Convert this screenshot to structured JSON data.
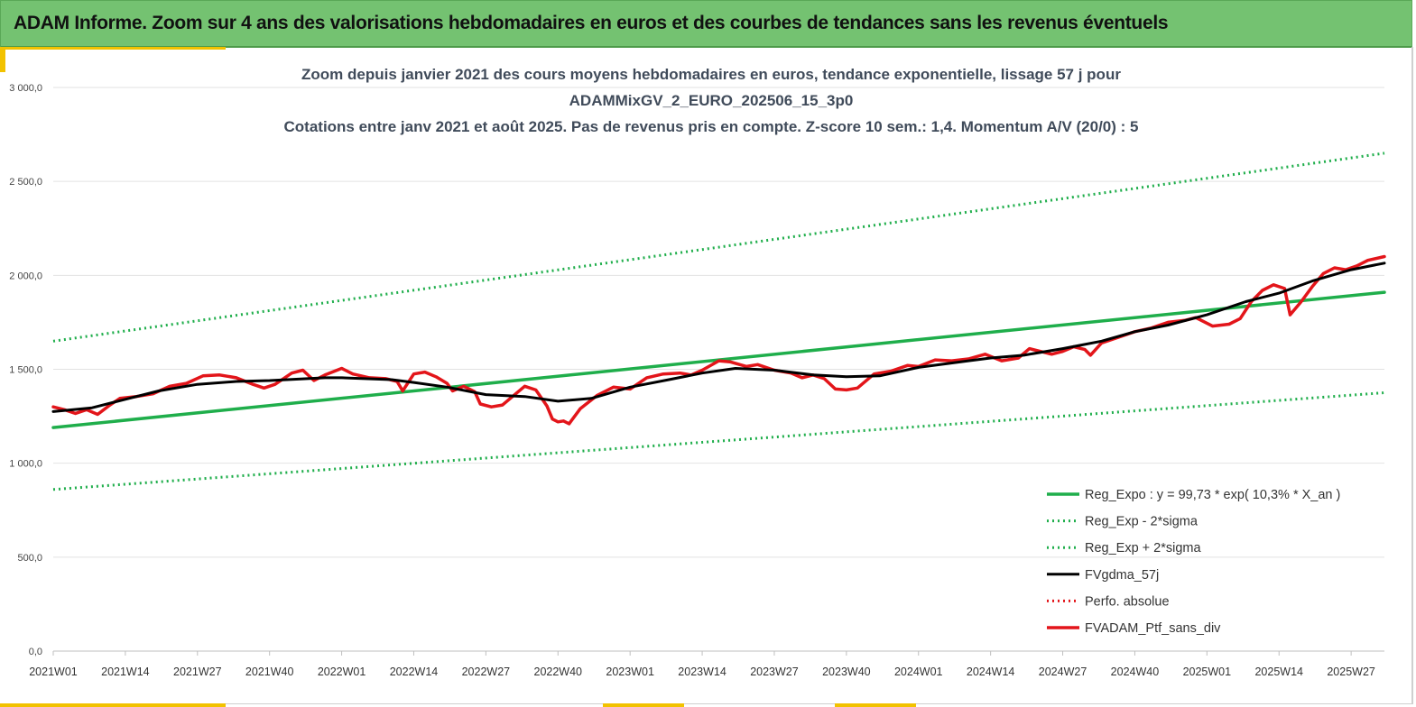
{
  "header": {
    "title": "ADAM Informe. Zoom sur 4 ans des valorisations hebdomadaires en euros et des courbes de tendances sans les revenus éventuels"
  },
  "colors": {
    "header_bg": "#74c271",
    "accent": "#f2c200",
    "reg_expo": "#1fae4b",
    "band": "#1fae4b",
    "mma": "#000000",
    "series": "#e3151a"
  },
  "chart_data": {
    "type": "line",
    "title_lines": [
      "Zoom depuis janvier 2021 des cours moyens hebdomadaires  en euros, tendance exponentielle, lissage 57 j pour",
      "ADAMMixGV_2_EURO_202506_15_3p0",
      "Cotations  entre janv 2021 et août 2025. Pas de revenus pris en compte. Z-score 10 sem.: 1,4. Momentum A/V (20/0) : 5"
    ],
    "ylim": [
      0,
      3000
    ],
    "y_ticks": [
      {
        "value": 0,
        "label": "0,0"
      },
      {
        "value": 500,
        "label": "500,0"
      },
      {
        "value": 1000,
        "label": "1 000,0"
      },
      {
        "value": 1500,
        "label": "1 500,0"
      },
      {
        "value": 2000,
        "label": "2 000,0"
      },
      {
        "value": 2500,
        "label": "2 500,0"
      },
      {
        "value": 3000,
        "label": "3 000,0"
      }
    ],
    "x_ticks": [
      "2021W01",
      "2021W14",
      "2021W27",
      "2021W40",
      "2022W01",
      "2022W14",
      "2022W27",
      "2022W40",
      "2023W01",
      "2023W14",
      "2023W27",
      "2023W40",
      "2024W01",
      "2024W14",
      "2024W27",
      "2024W40",
      "2025W01",
      "2025W14",
      "2025W27"
    ],
    "grid": true,
    "legend_position": "bottom-right",
    "series": [
      {
        "name": "Reg_Expo : y = 99,73 * exp( 10,3% *  X_an )",
        "style": "solid-green",
        "points": [
          [
            "2021W01",
            1190
          ],
          [
            "2025W33",
            1910
          ]
        ]
      },
      {
        "name": "Reg_Exp - 2*sigma",
        "style": "dotted-green",
        "points": [
          [
            "2021W01",
            860
          ],
          [
            "2025W33",
            1375
          ]
        ]
      },
      {
        "name": "Reg_Exp + 2*sigma",
        "style": "dotted-green",
        "points": [
          [
            "2021W01",
            1650
          ],
          [
            "2025W33",
            2650
          ]
        ]
      },
      {
        "name": "FVgdma_57j",
        "style": "solid-black",
        "points": [
          [
            "2021W01",
            1275
          ],
          [
            "2021W08",
            1295
          ],
          [
            "2021W14",
            1340
          ],
          [
            "2021W20",
            1385
          ],
          [
            "2021W27",
            1420
          ],
          [
            "2021W34",
            1435
          ],
          [
            "2021W40",
            1440
          ],
          [
            "2021W50",
            1455
          ],
          [
            "2022W01",
            1455
          ],
          [
            "2022W10",
            1445
          ],
          [
            "2022W14",
            1430
          ],
          [
            "2022W20",
            1405
          ],
          [
            "2022W27",
            1365
          ],
          [
            "2022W34",
            1355
          ],
          [
            "2022W40",
            1330
          ],
          [
            "2022W46",
            1345
          ],
          [
            "2023W01",
            1405
          ],
          [
            "2023W08",
            1445
          ],
          [
            "2023W14",
            1480
          ],
          [
            "2023W20",
            1505
          ],
          [
            "2023W27",
            1495
          ],
          [
            "2023W34",
            1470
          ],
          [
            "2023W40",
            1460
          ],
          [
            "2023W46",
            1465
          ],
          [
            "2024W01",
            1510
          ],
          [
            "2024W10",
            1545
          ],
          [
            "2024W14",
            1560
          ],
          [
            "2024W20",
            1575
          ],
          [
            "2024W27",
            1610
          ],
          [
            "2024W34",
            1650
          ],
          [
            "2024W40",
            1700
          ],
          [
            "2024W46",
            1735
          ],
          [
            "2025W01",
            1790
          ],
          [
            "2025W08",
            1860
          ],
          [
            "2025W14",
            1905
          ],
          [
            "2025W20",
            1970
          ],
          [
            "2025W27",
            2030
          ],
          [
            "2025W33",
            2065
          ]
        ]
      },
      {
        "name": "Perfo. absolue",
        "style": "dotted-red",
        "points": []
      },
      {
        "name": "FVADAM_Ptf_sans_div",
        "style": "solid-red",
        "points": [
          [
            "2021W01",
            1300
          ],
          [
            "2021W03",
            1285
          ],
          [
            "2021W05",
            1265
          ],
          [
            "2021W07",
            1285
          ],
          [
            "2021W09",
            1260
          ],
          [
            "2021W11",
            1305
          ],
          [
            "2021W13",
            1345
          ],
          [
            "2021W16",
            1355
          ],
          [
            "2021W19",
            1370
          ],
          [
            "2021W22",
            1410
          ],
          [
            "2021W25",
            1425
          ],
          [
            "2021W28",
            1465
          ],
          [
            "2021W31",
            1470
          ],
          [
            "2021W34",
            1455
          ],
          [
            "2021W37",
            1420
          ],
          [
            "2021W39",
            1400
          ],
          [
            "2021W41",
            1420
          ],
          [
            "2021W44",
            1480
          ],
          [
            "2021W46",
            1495
          ],
          [
            "2021W48",
            1440
          ],
          [
            "2021W50",
            1470
          ],
          [
            "2022W01",
            1505
          ],
          [
            "2022W03",
            1475
          ],
          [
            "2022W06",
            1455
          ],
          [
            "2022W09",
            1450
          ],
          [
            "2022W11",
            1435
          ],
          [
            "2022W12",
            1385
          ],
          [
            "2022W14",
            1475
          ],
          [
            "2022W16",
            1485
          ],
          [
            "2022W18",
            1460
          ],
          [
            "2022W20",
            1425
          ],
          [
            "2022W21",
            1385
          ],
          [
            "2022W23",
            1410
          ],
          [
            "2022W25",
            1380
          ],
          [
            "2022W26",
            1315
          ],
          [
            "2022W28",
            1300
          ],
          [
            "2022W30",
            1310
          ],
          [
            "2022W32",
            1360
          ],
          [
            "2022W34",
            1410
          ],
          [
            "2022W36",
            1390
          ],
          [
            "2022W38",
            1305
          ],
          [
            "2022W39",
            1235
          ],
          [
            "2022W40",
            1220
          ],
          [
            "2022W41",
            1225
          ],
          [
            "2022W42",
            1210
          ],
          [
            "2022W44",
            1290
          ],
          [
            "2022W47",
            1360
          ],
          [
            "2022W50",
            1405
          ],
          [
            "2023W01",
            1395
          ],
          [
            "2023W04",
            1455
          ],
          [
            "2023W07",
            1475
          ],
          [
            "2023W10",
            1480
          ],
          [
            "2023W12",
            1470
          ],
          [
            "2023W14",
            1495
          ],
          [
            "2023W17",
            1545
          ],
          [
            "2023W19",
            1540
          ],
          [
            "2023W22",
            1515
          ],
          [
            "2023W24",
            1525
          ],
          [
            "2023W27",
            1495
          ],
          [
            "2023W30",
            1480
          ],
          [
            "2023W32",
            1455
          ],
          [
            "2023W34",
            1470
          ],
          [
            "2023W36",
            1450
          ],
          [
            "2023W38",
            1395
          ],
          [
            "2023W40",
            1390
          ],
          [
            "2023W42",
            1400
          ],
          [
            "2023W45",
            1475
          ],
          [
            "2023W48",
            1490
          ],
          [
            "2023W51",
            1520
          ],
          [
            "2024W01",
            1515
          ],
          [
            "2024W04",
            1550
          ],
          [
            "2024W07",
            1545
          ],
          [
            "2024W10",
            1555
          ],
          [
            "2024W13",
            1580
          ],
          [
            "2024W16",
            1545
          ],
          [
            "2024W19",
            1560
          ],
          [
            "2024W21",
            1610
          ],
          [
            "2024W23",
            1595
          ],
          [
            "2024W25",
            1580
          ],
          [
            "2024W27",
            1595
          ],
          [
            "2024W29",
            1620
          ],
          [
            "2024W31",
            1605
          ],
          [
            "2024W32",
            1575
          ],
          [
            "2024W34",
            1640
          ],
          [
            "2024W37",
            1670
          ],
          [
            "2024W40",
            1700
          ],
          [
            "2024W43",
            1720
          ],
          [
            "2024W46",
            1750
          ],
          [
            "2024W49",
            1760
          ],
          [
            "2024W51",
            1775
          ],
          [
            "2025W02",
            1730
          ],
          [
            "2025W05",
            1740
          ],
          [
            "2025W07",
            1770
          ],
          [
            "2025W09",
            1860
          ],
          [
            "2025W11",
            1920
          ],
          [
            "2025W13",
            1950
          ],
          [
            "2025W15",
            1930
          ],
          [
            "2025W16",
            1790
          ],
          [
            "2025W18",
            1860
          ],
          [
            "2025W20",
            1940
          ],
          [
            "2025W22",
            2010
          ],
          [
            "2025W24",
            2040
          ],
          [
            "2025W26",
            2030
          ],
          [
            "2025W28",
            2050
          ],
          [
            "2025W30",
            2080
          ],
          [
            "2025W33",
            2100
          ]
        ]
      }
    ]
  }
}
